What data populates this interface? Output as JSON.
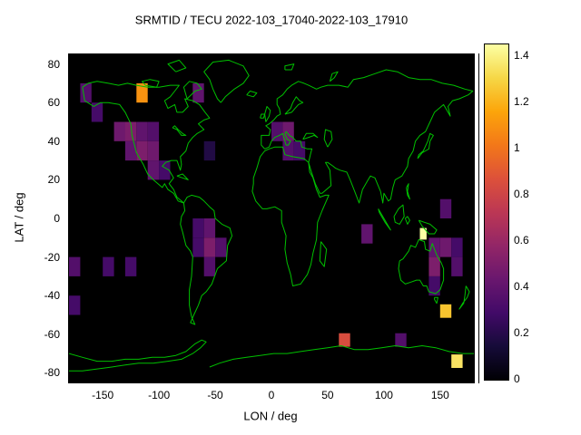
{
  "title": "SRMTID / TECU 2022-103_17040-2022-103_17910",
  "axes": {
    "x_label": "LON / deg",
    "y_label": "LAT / deg",
    "x_range": [
      -180,
      180
    ],
    "y_range": [
      -85,
      85
    ],
    "x_ticks": [
      {
        "v": -150,
        "label": "-150"
      },
      {
        "v": -100,
        "label": "-100"
      },
      {
        "v": -50,
        "label": "-50"
      },
      {
        "v": 0,
        "label": "0"
      },
      {
        "v": 50,
        "label": "50"
      },
      {
        "v": 100,
        "label": "100"
      },
      {
        "v": 150,
        "label": "150"
      }
    ],
    "y_ticks": [
      {
        "v": 80,
        "label": "80"
      },
      {
        "v": 60,
        "label": "60"
      },
      {
        "v": 40,
        "label": "40"
      },
      {
        "v": 20,
        "label": "20"
      },
      {
        "v": 0,
        "label": "0"
      },
      {
        "v": -20,
        "label": "-20"
      },
      {
        "v": -40,
        "label": "-40"
      },
      {
        "v": -60,
        "label": "-60"
      },
      {
        "v": -80,
        "label": "-80"
      }
    ]
  },
  "colors": {
    "page_background": "#ffffff",
    "plot_background": "#000000",
    "coastline": "#00c000",
    "text": "#000000"
  },
  "colorbar": {
    "range": [
      0,
      1.45
    ],
    "ticks": [
      {
        "v": 0,
        "label": "0"
      },
      {
        "v": 0.2,
        "label": "0.2"
      },
      {
        "v": 0.4,
        "label": "0.4"
      },
      {
        "v": 0.6,
        "label": "0.6"
      },
      {
        "v": 0.8,
        "label": "0.8"
      },
      {
        "v": 1,
        "label": "1"
      },
      {
        "v": 1.2,
        "label": "1.2"
      },
      {
        "v": 1.4,
        "label": "1.4"
      }
    ],
    "stops": [
      {
        "t": 0.0,
        "c": "#000004"
      },
      {
        "t": 0.1,
        "c": "#160b39"
      },
      {
        "t": 0.2,
        "c": "#420a68"
      },
      {
        "t": 0.3,
        "c": "#6a176e"
      },
      {
        "t": 0.4,
        "c": "#932667"
      },
      {
        "t": 0.5,
        "c": "#bc3754"
      },
      {
        "t": 0.6,
        "c": "#dd513a"
      },
      {
        "t": 0.7,
        "c": "#f37819"
      },
      {
        "t": 0.8,
        "c": "#fca50a"
      },
      {
        "t": 0.9,
        "c": "#f6d746"
      },
      {
        "t": 1.0,
        "c": "#fcffa4"
      }
    ]
  },
  "chart_data": {
    "type": "heatmap",
    "title": "SRMTID / TECU 2022-103_17040-2022-103_17910",
    "xlabel": "LON / deg",
    "ylabel": "LAT / deg",
    "xlim": [
      -180,
      180
    ],
    "ylim": [
      -85,
      85
    ],
    "value_unit": "TECU",
    "value_range": [
      0,
      1.45
    ],
    "cell_size_deg": 10,
    "cells": [
      {
        "lon": -165,
        "lat": 65,
        "v": 0.35
      },
      {
        "lon": -115,
        "lat": 65,
        "v": 1.1
      },
      {
        "lon": -65,
        "lat": 65,
        "v": 0.4
      },
      {
        "lon": -155,
        "lat": 55,
        "v": 0.3
      },
      {
        "lon": -135,
        "lat": 45,
        "v": 0.45
      },
      {
        "lon": -125,
        "lat": 45,
        "v": 0.5
      },
      {
        "lon": -115,
        "lat": 45,
        "v": 0.4
      },
      {
        "lon": -105,
        "lat": 45,
        "v": 0.35
      },
      {
        "lon": -125,
        "lat": 35,
        "v": 0.4
      },
      {
        "lon": -115,
        "lat": 35,
        "v": 0.5
      },
      {
        "lon": -105,
        "lat": 35,
        "v": 0.45
      },
      {
        "lon": -55,
        "lat": 35,
        "v": 0.18
      },
      {
        "lon": 5,
        "lat": 45,
        "v": 0.35
      },
      {
        "lon": 15,
        "lat": 45,
        "v": 0.45
      },
      {
        "lon": 15,
        "lat": 35,
        "v": 0.35
      },
      {
        "lon": 25,
        "lat": 35,
        "v": 0.3
      },
      {
        "lon": -105,
        "lat": 25,
        "v": 0.4
      },
      {
        "lon": -95,
        "lat": 25,
        "v": 0.3
      },
      {
        "lon": -65,
        "lat": -5,
        "v": 0.3
      },
      {
        "lon": -55,
        "lat": -5,
        "v": 0.4
      },
      {
        "lon": -65,
        "lat": -15,
        "v": 0.3
      },
      {
        "lon": -55,
        "lat": -15,
        "v": 0.5
      },
      {
        "lon": -45,
        "lat": -15,
        "v": 0.35
      },
      {
        "lon": 155,
        "lat": 5,
        "v": 0.35
      },
      {
        "lon": 135,
        "lat": -8,
        "v": 1.45,
        "w": 6,
        "h": 6
      },
      {
        "lon": 85,
        "lat": -8,
        "v": 0.4
      },
      {
        "lon": 145,
        "lat": -15,
        "v": 0.4
      },
      {
        "lon": 155,
        "lat": -15,
        "v": 0.45
      },
      {
        "lon": 165,
        "lat": -15,
        "v": 0.3
      },
      {
        "lon": -175,
        "lat": -25,
        "v": 0.35
      },
      {
        "lon": -145,
        "lat": -25,
        "v": 0.3
      },
      {
        "lon": -125,
        "lat": -25,
        "v": 0.3
      },
      {
        "lon": -55,
        "lat": -25,
        "v": 0.35
      },
      {
        "lon": 145,
        "lat": -25,
        "v": 0.5
      },
      {
        "lon": 165,
        "lat": -25,
        "v": 0.35
      },
      {
        "lon": 145,
        "lat": -35,
        "v": 0.3
      },
      {
        "lon": -175,
        "lat": -45,
        "v": 0.3
      },
      {
        "lon": 155,
        "lat": -48,
        "v": 1.25,
        "h": 7
      },
      {
        "lon": 65,
        "lat": -63,
        "v": 0.85,
        "h": 7
      },
      {
        "lon": 115,
        "lat": -63,
        "v": 0.35,
        "h": 7
      },
      {
        "lon": 165,
        "lat": -74,
        "v": 1.35,
        "h": 7
      }
    ]
  }
}
